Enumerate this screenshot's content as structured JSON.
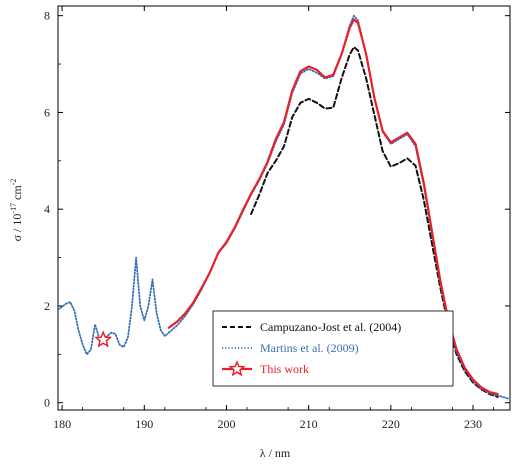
{
  "chart_data": {
    "type": "line",
    "xlabel": "λ / nm",
    "ylabel": "σ / 10",
    "ylabel_exponent": "-17",
    "ylabel_tail": " cm",
    "ylabel_tail_exponent": "-2",
    "xlim": [
      179.5,
      234.5
    ],
    "ylim": [
      -0.15,
      8.2
    ],
    "x_ticks": [
      180,
      190,
      200,
      210,
      220,
      230
    ],
    "y_ticks": [
      0,
      2,
      4,
      6,
      8
    ],
    "grid": false,
    "legend_position": "bottom-right",
    "series": [
      {
        "name": "Campuzano-Jost et al. (2004)",
        "color": "#111111",
        "style": "dashed",
        "points": [
          [
            203,
            3.9
          ],
          [
            204,
            4.3
          ],
          [
            205,
            4.75
          ],
          [
            206,
            5.0
          ],
          [
            207,
            5.3
          ],
          [
            208,
            5.9
          ],
          [
            209,
            6.2
          ],
          [
            210,
            6.28
          ],
          [
            211,
            6.2
          ],
          [
            212,
            6.08
          ],
          [
            213,
            6.1
          ],
          [
            214,
            6.7
          ],
          [
            215,
            7.2
          ],
          [
            215.5,
            7.35
          ],
          [
            216,
            7.28
          ],
          [
            217,
            6.7
          ],
          [
            218,
            5.95
          ],
          [
            219,
            5.2
          ],
          [
            220,
            4.88
          ],
          [
            221,
            4.95
          ],
          [
            222,
            5.05
          ],
          [
            223,
            4.9
          ],
          [
            224,
            4.2
          ],
          [
            225,
            3.3
          ],
          [
            226,
            2.4
          ],
          [
            227,
            1.6
          ],
          [
            228,
            1.0
          ],
          [
            229,
            0.65
          ],
          [
            230,
            0.42
          ],
          [
            231,
            0.28
          ],
          [
            232,
            0.18
          ],
          [
            233,
            0.12
          ]
        ]
      },
      {
        "name": "Martins et al. (2009)",
        "color": "#3a6fb5",
        "style": "dotted",
        "points": [
          [
            179.5,
            1.92
          ],
          [
            180.5,
            2.05
          ],
          [
            181,
            2.08
          ],
          [
            181.5,
            1.9
          ],
          [
            182,
            1.5
          ],
          [
            182.5,
            1.2
          ],
          [
            183,
            1.0
          ],
          [
            183.5,
            1.1
          ],
          [
            184,
            1.62
          ],
          [
            184.5,
            1.35
          ],
          [
            185,
            1.28
          ],
          [
            185.5,
            1.38
          ],
          [
            186,
            1.45
          ],
          [
            186.5,
            1.42
          ],
          [
            187,
            1.2
          ],
          [
            187.5,
            1.15
          ],
          [
            188,
            1.35
          ],
          [
            188.5,
            2.0
          ],
          [
            189,
            3.0
          ],
          [
            189.5,
            2.0
          ],
          [
            190,
            1.7
          ],
          [
            190.5,
            2.0
          ],
          [
            191,
            2.55
          ],
          [
            191.5,
            1.85
          ],
          [
            192,
            1.5
          ],
          [
            192.5,
            1.38
          ],
          [
            193,
            1.45
          ],
          [
            194,
            1.6
          ],
          [
            195,
            1.8
          ],
          [
            196,
            2.05
          ],
          [
            197,
            2.35
          ],
          [
            198,
            2.7
          ],
          [
            199,
            3.1
          ],
          [
            200,
            3.3
          ],
          [
            201,
            3.6
          ],
          [
            202,
            3.95
          ],
          [
            203,
            4.3
          ],
          [
            204,
            4.6
          ],
          [
            205,
            4.95
          ],
          [
            206,
            5.4
          ],
          [
            207,
            5.75
          ],
          [
            208,
            6.4
          ],
          [
            209,
            6.8
          ],
          [
            210,
            6.9
          ],
          [
            211,
            6.82
          ],
          [
            212,
            6.7
          ],
          [
            213,
            6.75
          ],
          [
            214,
            7.2
          ],
          [
            215,
            7.8
          ],
          [
            215.5,
            8.0
          ],
          [
            216,
            7.9
          ],
          [
            217,
            7.2
          ],
          [
            218,
            6.3
          ],
          [
            219,
            5.6
          ],
          [
            220,
            5.35
          ],
          [
            221,
            5.45
          ],
          [
            222,
            5.55
          ],
          [
            223,
            5.3
          ],
          [
            224,
            4.5
          ],
          [
            225,
            3.5
          ],
          [
            226,
            2.5
          ],
          [
            227,
            1.65
          ],
          [
            228,
            1.05
          ],
          [
            229,
            0.7
          ],
          [
            230,
            0.45
          ],
          [
            231,
            0.3
          ],
          [
            232,
            0.2
          ],
          [
            233,
            0.15
          ],
          [
            234,
            0.1
          ],
          [
            234.5,
            0.08
          ]
        ]
      },
      {
        "name": "This work",
        "color": "#e8202a",
        "style": "solid",
        "points": [
          [
            193,
            1.55
          ],
          [
            194,
            1.68
          ],
          [
            195,
            1.85
          ],
          [
            196,
            2.08
          ],
          [
            197,
            2.38
          ],
          [
            198,
            2.7
          ],
          [
            199,
            3.1
          ],
          [
            200,
            3.32
          ],
          [
            201,
            3.62
          ],
          [
            202,
            3.98
          ],
          [
            203,
            4.32
          ],
          [
            204,
            4.62
          ],
          [
            205,
            4.98
          ],
          [
            206,
            5.45
          ],
          [
            207,
            5.8
          ],
          [
            208,
            6.45
          ],
          [
            209,
            6.85
          ],
          [
            210,
            6.95
          ],
          [
            211,
            6.88
          ],
          [
            212,
            6.72
          ],
          [
            213,
            6.78
          ],
          [
            214,
            7.2
          ],
          [
            215,
            7.75
          ],
          [
            215.5,
            7.92
          ],
          [
            216,
            7.85
          ],
          [
            217,
            7.2
          ],
          [
            218,
            6.3
          ],
          [
            219,
            5.62
          ],
          [
            220,
            5.38
          ],
          [
            221,
            5.48
          ],
          [
            222,
            5.58
          ],
          [
            223,
            5.35
          ],
          [
            224,
            4.55
          ],
          [
            225,
            3.55
          ],
          [
            226,
            2.55
          ],
          [
            227,
            1.7
          ],
          [
            228,
            1.1
          ],
          [
            229,
            0.72
          ],
          [
            230,
            0.48
          ],
          [
            231,
            0.32
          ],
          [
            232,
            0.22
          ],
          [
            233,
            0.18
          ]
        ],
        "markers": [
          [
            185,
            1.3
          ]
        ]
      }
    ]
  }
}
